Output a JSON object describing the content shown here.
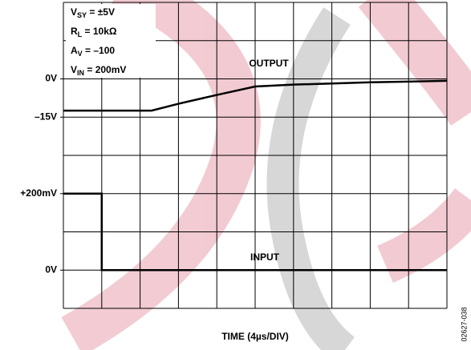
{
  "chart_data": {
    "type": "line",
    "xlabel": "TIME (4µs/DIV)",
    "figure_code": "02627-038",
    "conditions": [
      {
        "main": "V",
        "sub": "SY",
        "rest": " = ±5V"
      },
      {
        "main": "R",
        "sub": "L",
        "rest": " = 10kΩ"
      },
      {
        "main": "A",
        "sub": "V",
        "rest": " = –100"
      },
      {
        "main": "V",
        "sub": "IN",
        "rest": " = 200mV"
      }
    ],
    "xlim": [
      0,
      10
    ],
    "ylim": [
      0,
      8
    ],
    "grid": {
      "x_divisions": 10,
      "y_divisions": 8
    },
    "yticks": [
      {
        "value": 6,
        "label": "0V"
      },
      {
        "value": 5,
        "label": "–15V"
      },
      {
        "value": 3,
        "label": "+200mV"
      },
      {
        "value": 1,
        "label": "0V"
      }
    ],
    "series": [
      {
        "name": "OUTPUT",
        "color": "#000000",
        "x": [
          0,
          2.3,
          3,
          4,
          5,
          6,
          7,
          8,
          9,
          10
        ],
        "values": [
          5.17,
          5.17,
          5.35,
          5.58,
          5.8,
          5.85,
          5.88,
          5.91,
          5.93,
          5.95
        ]
      },
      {
        "name": "INPUT",
        "color": "#000000",
        "x": [
          0,
          1,
          1,
          10
        ],
        "values": [
          3,
          3,
          1,
          1
        ]
      }
    ]
  }
}
